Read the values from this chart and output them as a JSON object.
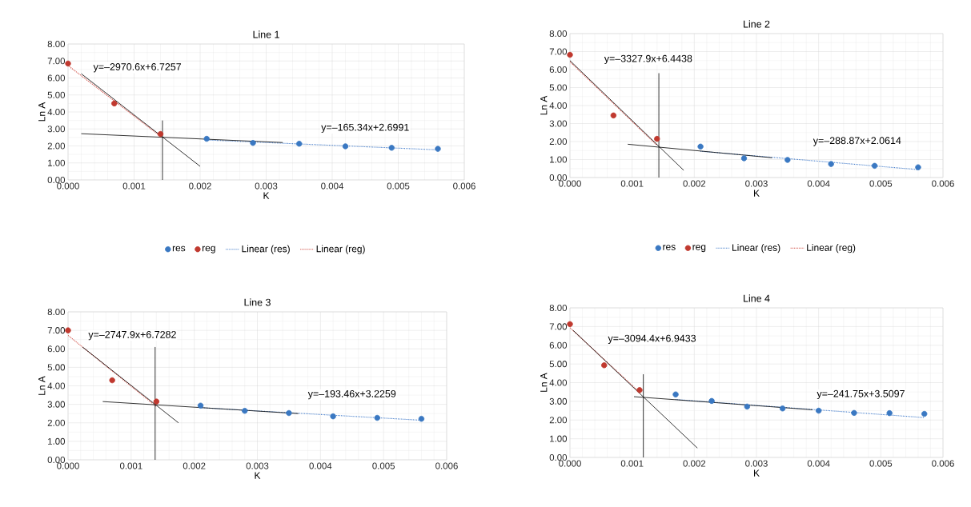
{
  "chart_data": [
    {
      "type": "scatter",
      "title": "Line 1",
      "xlabel": "K",
      "ylabel": "Ln A",
      "xlim": [
        0,
        0.006
      ],
      "ylim": [
        0,
        8
      ],
      "xticks": [
        {
          "value": 0,
          "label": "0.000"
        },
        {
          "value": 0.001,
          "label": "0.001"
        },
        {
          "value": 0.002,
          "label": "0.002"
        },
        {
          "value": 0.003,
          "label": "0.003"
        },
        {
          "value": 0.004,
          "label": "0.004"
        },
        {
          "value": 0.005,
          "label": "0.005"
        },
        {
          "value": 0.006,
          "label": "0.006"
        }
      ],
      "yticks": [
        {
          "value": 0,
          "label": "0.00"
        },
        {
          "value": 1,
          "label": "1.00"
        },
        {
          "value": 2,
          "label": "2.00"
        },
        {
          "value": 3,
          "label": "3.00"
        },
        {
          "value": 4,
          "label": "4.00"
        },
        {
          "value": 5,
          "label": "5.00"
        },
        {
          "value": 6,
          "label": "6.00"
        },
        {
          "value": 7,
          "label": "7.00"
        },
        {
          "value": 8,
          "label": "8.00"
        }
      ],
      "grid": true,
      "legend": "bottom",
      "marker": "circle",
      "series": [
        {
          "name": "res",
          "color": "#3a78c2",
          "x": [
            0.0021,
            0.0028,
            0.0035,
            0.0042,
            0.0049,
            0.0056
          ],
          "values": [
            2.42,
            2.18,
            2.13,
            1.98,
            1.89,
            1.83
          ]
        },
        {
          "name": "reg",
          "color": "#c0392f",
          "x": [
            0,
            0.0007,
            0.0014
          ],
          "values": [
            6.85,
            4.5,
            2.7
          ]
        },
        {
          "name": "Linear (res)",
          "type": "line",
          "line_style": "dotted",
          "marker": "none",
          "color": "#4a80cc",
          "x": [
            0.0021,
            0.0056
          ],
          "values": [
            2.35,
            1.77
          ]
        },
        {
          "name": "Linear (reg)",
          "type": "line",
          "line_style": "dotted",
          "marker": "none",
          "color": "#d04a40",
          "x": [
            0,
            0.0014
          ],
          "values": [
            6.73,
            2.57
          ]
        },
        {
          "type": "line",
          "line_style": "solid",
          "marker": "none",
          "color": "#000000",
          "x": [
            0.0002,
            0.002
          ],
          "values": [
            6.25,
            0.8
          ]
        },
        {
          "type": "line",
          "line_style": "solid",
          "marker": "none",
          "color": "#000000",
          "x": [
            0.0002,
            0.00325
          ],
          "values": [
            2.72,
            2.2
          ]
        },
        {
          "type": "line",
          "line_style": "solid",
          "marker": "none",
          "color": "#000000",
          "x": [
            0.00143,
            0.00143
          ],
          "values": [
            3.5,
            0
          ]
        }
      ],
      "annotations": [
        "y=–2970.6x+6.7257",
        "y=–165.34x+2.6991"
      ]
    },
    {
      "type": "scatter",
      "title": "Line 2",
      "xlabel": "K",
      "ylabel": "Ln A",
      "xlim": [
        0,
        0.006
      ],
      "ylim": [
        0,
        8
      ],
      "xticks": [
        {
          "value": 0,
          "label": "0.000"
        },
        {
          "value": 0.001,
          "label": "0.001"
        },
        {
          "value": 0.002,
          "label": "0.002"
        },
        {
          "value": 0.003,
          "label": "0.003"
        },
        {
          "value": 0.004,
          "label": "0.004"
        },
        {
          "value": 0.005,
          "label": "0.005"
        },
        {
          "value": 0.006,
          "label": "0.006"
        }
      ],
      "yticks": [
        {
          "value": 0,
          "label": "0.00"
        },
        {
          "value": 1,
          "label": "1.00"
        },
        {
          "value": 2,
          "label": "2.00"
        },
        {
          "value": 3,
          "label": "3.00"
        },
        {
          "value": 4,
          "label": "4.00"
        },
        {
          "value": 5,
          "label": "5.00"
        },
        {
          "value": 6,
          "label": "6.00"
        },
        {
          "value": 7,
          "label": "7.00"
        },
        {
          "value": 8,
          "label": "8.00"
        }
      ],
      "grid": true,
      "legend": "bottom",
      "marker": "circle",
      "series": [
        {
          "name": "res",
          "color": "#3a78c2",
          "x": [
            0.0021,
            0.0028,
            0.0035,
            0.0042,
            0.0049,
            0.0056
          ],
          "values": [
            1.72,
            1.07,
            0.98,
            0.75,
            0.65,
            0.57
          ]
        },
        {
          "name": "reg",
          "color": "#c0392f",
          "x": [
            0,
            0.0007,
            0.0014
          ],
          "values": [
            6.82,
            3.45,
            2.15
          ]
        },
        {
          "name": "Linear (res)",
          "type": "line",
          "line_style": "dotted",
          "marker": "none",
          "color": "#4a80cc",
          "x": [
            0.0021,
            0.0056
          ],
          "values": [
            1.46,
            0.44
          ]
        },
        {
          "name": "Linear (reg)",
          "type": "line",
          "line_style": "dotted",
          "marker": "none",
          "color": "#d04a40",
          "x": [
            0,
            0.0014
          ],
          "values": [
            6.44,
            1.79
          ]
        },
        {
          "type": "line",
          "line_style": "solid",
          "marker": "none",
          "color": "#000000",
          "x": [
            0,
            0.00183
          ],
          "values": [
            6.5,
            0.4
          ]
        },
        {
          "type": "line",
          "line_style": "solid",
          "marker": "none",
          "color": "#000000",
          "x": [
            0.00093,
            0.00325
          ],
          "values": [
            1.85,
            1.1
          ]
        },
        {
          "type": "line",
          "line_style": "solid",
          "marker": "none",
          "color": "#000000",
          "x": [
            0.00143,
            0.00143
          ],
          "values": [
            5.8,
            0
          ]
        }
      ],
      "annotations": [
        "y=–3327.9x+6.4438",
        "y=–288.87x+2.0614"
      ]
    },
    {
      "type": "scatter",
      "title": "Line 3",
      "xlabel": "K",
      "ylabel": "Ln A",
      "xlim": [
        0,
        0.006
      ],
      "ylim": [
        0,
        8
      ],
      "xticks": [
        {
          "value": 0,
          "label": "0.000"
        },
        {
          "value": 0.001,
          "label": "0.001"
        },
        {
          "value": 0.002,
          "label": "0.002"
        },
        {
          "value": 0.003,
          "label": "0.003"
        },
        {
          "value": 0.004,
          "label": "0.004"
        },
        {
          "value": 0.005,
          "label": "0.005"
        },
        {
          "value": 0.006,
          "label": "0.006"
        }
      ],
      "yticks": [
        {
          "value": 0,
          "label": "0.00"
        },
        {
          "value": 1,
          "label": "1.00"
        },
        {
          "value": 2,
          "label": "2.00"
        },
        {
          "value": 3,
          "label": "3.00"
        },
        {
          "value": 4,
          "label": "4.00"
        },
        {
          "value": 5,
          "label": "5.00"
        },
        {
          "value": 6,
          "label": "6.00"
        },
        {
          "value": 7,
          "label": "7.00"
        },
        {
          "value": 8,
          "label": "8.00"
        }
      ],
      "grid": true,
      "marker": "circle",
      "series": [
        {
          "color": "#3a78c2",
          "x": [
            0.0021,
            0.0028,
            0.0035,
            0.0042,
            0.0049,
            0.0056
          ],
          "values": [
            2.93,
            2.65,
            2.53,
            2.35,
            2.27,
            2.22
          ]
        },
        {
          "color": "#c0392f",
          "x": [
            0,
            0.0007,
            0.0014
          ],
          "values": [
            7.0,
            4.3,
            3.15
          ]
        },
        {
          "type": "line",
          "line_style": "dotted",
          "marker": "none",
          "color": "#4a80cc",
          "x": [
            0.0021,
            0.0056
          ],
          "values": [
            2.82,
            2.14
          ]
        },
        {
          "type": "line",
          "line_style": "dotted",
          "marker": "none",
          "color": "#d04a40",
          "x": [
            0,
            0.0014
          ],
          "values": [
            6.73,
            2.88
          ]
        },
        {
          "type": "line",
          "line_style": "solid",
          "marker": "none",
          "color": "#000000",
          "x": [
            0.00023,
            0.00175
          ],
          "values": [
            6.1,
            2.0
          ]
        },
        {
          "type": "line",
          "line_style": "solid",
          "marker": "none",
          "color": "#000000",
          "x": [
            0.00055,
            0.00365
          ],
          "values": [
            3.15,
            2.5
          ]
        },
        {
          "type": "line",
          "line_style": "solid",
          "marker": "none",
          "color": "#000000",
          "x": [
            0.00138,
            0.00138
          ],
          "values": [
            6.1,
            0
          ]
        }
      ],
      "annotations": [
        "y=–2747.9x+6.7282",
        "y=–193.46x+3.2259"
      ]
    },
    {
      "type": "scatter",
      "title": "Line 4",
      "xlabel": "K",
      "ylabel": "Ln A",
      "xlim": [
        0,
        0.006
      ],
      "ylim": [
        0,
        8
      ],
      "xticks": [
        {
          "value": 0,
          "label": "0.000"
        },
        {
          "value": 0.001,
          "label": "0.001"
        },
        {
          "value": 0.002,
          "label": "0.002"
        },
        {
          "value": 0.003,
          "label": "0.003"
        },
        {
          "value": 0.004,
          "label": "0.004"
        },
        {
          "value": 0.005,
          "label": "0.005"
        },
        {
          "value": 0.006,
          "label": "0.006"
        }
      ],
      "yticks": [
        {
          "value": 0,
          "label": "0.00"
        },
        {
          "value": 1,
          "label": "1.00"
        },
        {
          "value": 2,
          "label": "2.00"
        },
        {
          "value": 3,
          "label": "3.00"
        },
        {
          "value": 4,
          "label": "4.00"
        },
        {
          "value": 5,
          "label": "5.00"
        },
        {
          "value": 6,
          "label": "6.00"
        },
        {
          "value": 7,
          "label": "7.00"
        },
        {
          "value": 8,
          "label": "8.00"
        }
      ],
      "grid": true,
      "marker": "circle",
      "series": [
        {
          "color": "#3a78c2",
          "x": [
            0.0017,
            0.00228,
            0.00285,
            0.00342,
            0.004,
            0.00457,
            0.00514,
            0.0057
          ],
          "values": [
            3.37,
            3.02,
            2.72,
            2.62,
            2.5,
            2.38,
            2.37,
            2.33
          ]
        },
        {
          "color": "#c0392f",
          "x": [
            0,
            0.00055,
            0.00112
          ],
          "values": [
            7.13,
            4.93,
            3.6
          ]
        },
        {
          "type": "line",
          "line_style": "dotted",
          "marker": "none",
          "color": "#4a80cc",
          "x": [
            0.0017,
            0.0057
          ],
          "values": [
            3.1,
            2.13
          ]
        },
        {
          "type": "line",
          "line_style": "dotted",
          "marker": "none",
          "color": "#d04a40",
          "x": [
            0,
            0.00112
          ],
          "values": [
            6.94,
            3.48
          ]
        },
        {
          "type": "line",
          "line_style": "solid",
          "marker": "none",
          "color": "#000000",
          "x": [
            5e-05,
            0.00205
          ],
          "values": [
            6.8,
            0.5
          ]
        },
        {
          "type": "line",
          "line_style": "solid",
          "marker": "none",
          "color": "#000000",
          "x": [
            0.00103,
            0.0039
          ],
          "values": [
            3.25,
            2.55
          ]
        },
        {
          "type": "line",
          "line_style": "solid",
          "marker": "none",
          "color": "#000000",
          "x": [
            0.00118,
            0.00118
          ],
          "values": [
            4.45,
            0
          ]
        }
      ],
      "annotations": [
        "y=–3094.4x+6.9433",
        "y=–241.75x+3.5097"
      ]
    }
  ]
}
